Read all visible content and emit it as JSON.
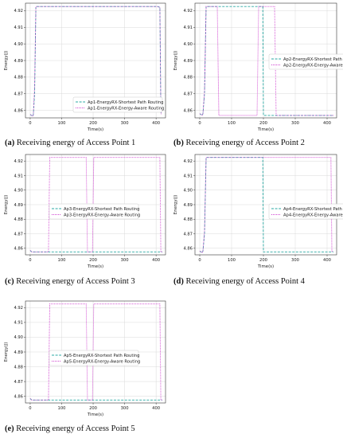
{
  "colors": {
    "series1": "#2aa9a3",
    "series2": "#cc33cc",
    "grid": "#d9d9d9",
    "frame": "#333333"
  },
  "chart_data": [
    {
      "type": "line",
      "caption_tag": "(a)",
      "caption_text": "Receiving energy of Access Point 1",
      "xlabel": "Time(s)",
      "ylabel": "Energy(J)",
      "xlim": [
        -15,
        430
      ],
      "ylim": [
        4.8555,
        4.9245
      ],
      "xticks": [
        0,
        100,
        200,
        300,
        400
      ],
      "yticks": [
        4.86,
        4.87,
        4.88,
        4.89,
        4.9,
        4.91,
        4.92
      ],
      "grid": true,
      "legend_position": "lower-center",
      "series": [
        {
          "name": "Ap1-EnergyRX-Shortest Path Routing",
          "style": "dashed",
          "x": [
            0,
            8,
            10,
            14,
            18,
            405,
            412,
            415,
            416
          ],
          "y": [
            4.8575,
            4.8565,
            4.8575,
            4.87,
            4.9225,
            4.9225,
            4.922,
            4.86,
            4.8575
          ]
        },
        {
          "name": "Ap1-EnergyRX-Energy-Aware Routing",
          "style": "dotted",
          "x": [
            0,
            8,
            10,
            14,
            18,
            405,
            412,
            415,
            416
          ],
          "y": [
            4.8575,
            4.8565,
            4.8575,
            4.875,
            4.9225,
            4.9225,
            4.922,
            4.862,
            4.8575
          ]
        }
      ]
    },
    {
      "type": "line",
      "caption_tag": "(b)",
      "caption_text": "Receiving energy of Access Point 2",
      "xlabel": "Time(s)",
      "ylabel": "Energy(J)",
      "xlim": [
        -15,
        430
      ],
      "ylim": [
        4.8555,
        4.9245
      ],
      "xticks": [
        0,
        100,
        200,
        300,
        400
      ],
      "yticks": [
        4.86,
        4.87,
        4.88,
        4.89,
        4.9,
        4.91,
        4.92
      ],
      "grid": true,
      "legend_position": "center-right",
      "series": [
        {
          "name": "Ap2-EnergyRX-Shortest Path Routing",
          "style": "dashed",
          "x": [
            0,
            8,
            10,
            15,
            20,
            198,
            200,
            215,
            420
          ],
          "y": [
            4.858,
            4.857,
            4.858,
            4.87,
            4.9225,
            4.9225,
            4.857,
            4.857,
            4.857
          ]
        },
        {
          "name": "Ap2-EnergyRX-Energy-Aware Routing",
          "style": "dotted",
          "x": [
            0,
            8,
            10,
            15,
            20,
            55,
            60,
            180,
            185,
            235,
            240,
            420
          ],
          "y": [
            4.858,
            4.857,
            4.858,
            4.872,
            4.9225,
            4.9225,
            4.857,
            4.857,
            4.9225,
            4.9225,
            4.857,
            4.857
          ]
        }
      ]
    },
    {
      "type": "line",
      "caption_tag": "(c)",
      "caption_text": "Receiving energy of Access Point 3",
      "xlabel": "Time(s)",
      "ylabel": "Energy(J)",
      "xlim": [
        -15,
        430
      ],
      "ylim": [
        4.8555,
        4.9245
      ],
      "xticks": [
        0,
        100,
        200,
        300,
        400
      ],
      "yticks": [
        4.86,
        4.87,
        4.88,
        4.89,
        4.9,
        4.91,
        4.92
      ],
      "grid": true,
      "legend_position": "center-left",
      "series": [
        {
          "name": "Ap3-EnergyRX-Shortest Path Routing",
          "style": "dashed",
          "x": [
            0,
            5,
            10,
            420
          ],
          "y": [
            4.8585,
            4.8575,
            4.8575,
            4.8575
          ]
        },
        {
          "name": "Ap3-EnergyRX-Energy-Aware Routing",
          "style": "dotted",
          "x": [
            0,
            5,
            10,
            58,
            62,
            178,
            182,
            198,
            202,
            412,
            415,
            420
          ],
          "y": [
            4.8585,
            4.8575,
            4.8575,
            4.8575,
            4.9225,
            4.9225,
            4.8575,
            4.8575,
            4.9225,
            4.9225,
            4.8575,
            4.8575
          ]
        }
      ]
    },
    {
      "type": "line",
      "caption_tag": "(d)",
      "caption_text": "Receiving energy of Access Point 4",
      "xlabel": "Time(s)",
      "ylabel": "Energy(J)",
      "xlim": [
        -15,
        430
      ],
      "ylim": [
        4.8555,
        4.9245
      ],
      "xticks": [
        0,
        100,
        200,
        300,
        400
      ],
      "yticks": [
        4.86,
        4.87,
        4.88,
        4.89,
        4.9,
        4.91,
        4.92
      ],
      "grid": true,
      "legend_position": "center-right",
      "series": [
        {
          "name": "Ap4-EnergyRX-Shortest Path Routing",
          "style": "dashed",
          "x": [
            0,
            8,
            10,
            15,
            20,
            198,
            200,
            420
          ],
          "y": [
            4.858,
            4.857,
            4.858,
            4.87,
            4.9225,
            4.9225,
            4.8575,
            4.8575
          ]
        },
        {
          "name": "Ap4-EnergyRX-Energy-Aware Routing",
          "style": "dotted",
          "x": [
            0,
            8,
            10,
            15,
            20,
            412,
            415,
            420
          ],
          "y": [
            4.858,
            4.857,
            4.858,
            4.872,
            4.9225,
            4.9225,
            4.858,
            4.858
          ]
        }
      ]
    },
    {
      "type": "line",
      "caption_tag": "(e)",
      "caption_text": "Receiving energy of Access Point 5",
      "xlabel": "Time(s)",
      "ylabel": "Energy(J)",
      "xlim": [
        -15,
        430
      ],
      "ylim": [
        4.8555,
        4.9245
      ],
      "xticks": [
        0,
        100,
        200,
        300,
        400
      ],
      "yticks": [
        4.86,
        4.87,
        4.88,
        4.89,
        4.9,
        4.91,
        4.92
      ],
      "grid": true,
      "legend_position": "center-left",
      "series": [
        {
          "name": "Ap5-EnergyRX-Shortest Path Routing",
          "style": "dashed",
          "x": [
            0,
            5,
            10,
            420
          ],
          "y": [
            4.8585,
            4.8575,
            4.8575,
            4.8575
          ]
        },
        {
          "name": "Ap5-EnergyRX-Energy-Aware Routing",
          "style": "dotted",
          "x": [
            0,
            5,
            10,
            58,
            62,
            178,
            182,
            198,
            202,
            412,
            415,
            420
          ],
          "y": [
            4.8585,
            4.8575,
            4.8575,
            4.8575,
            4.9225,
            4.9225,
            4.8575,
            4.8575,
            4.9225,
            4.9225,
            4.8575,
            4.8575
          ]
        }
      ]
    }
  ]
}
